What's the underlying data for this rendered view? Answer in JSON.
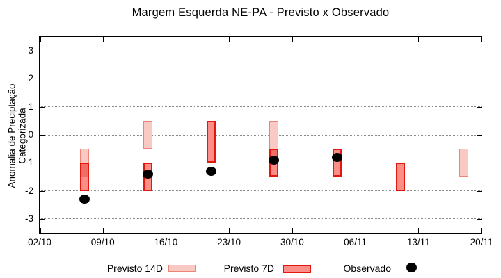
{
  "title": "Margem Esquerda NE-PA - Previsto x Observado",
  "colors": {
    "background": "#ffffff",
    "axis": "#000000",
    "grid": "#8a8a8a",
    "p14_fill": "#f9c9c4",
    "p14_border": "#ee8478",
    "p7_fill": "#fb8e86",
    "p7_border": "#e3170d",
    "overlap_fill": "#ef6f66",
    "observed": "#000000"
  },
  "legend": {
    "items": [
      {
        "label": "Previsto 14D",
        "swatch": "box-light-pink"
      },
      {
        "label": "Previsto 7D",
        "swatch": "box-red"
      },
      {
        "label": "Observado",
        "swatch": "black-dot"
      }
    ]
  },
  "chart_data": {
    "type": "bar",
    "subtype": "floating-range-boxes-with-scatter-overlay",
    "title": "Margem Esquerda NE-PA - Previsto x Observado",
    "xlabel": "",
    "ylabel": "Anomalia de Preciptação Categorizada",
    "ylim": [
      -3.5,
      3.5
    ],
    "xlim_days": [
      0,
      49
    ],
    "grid": "horizontal-dotted-at-integer-y",
    "legend_position": "bottom-outside",
    "y_ticks": [
      3,
      2,
      1,
      0,
      -1,
      -2,
      -3
    ],
    "x_ticks": [
      {
        "label": "02/10",
        "day": 0
      },
      {
        "label": "09/10",
        "day": 7
      },
      {
        "label": "16/10",
        "day": 14
      },
      {
        "label": "23/10",
        "day": 21
      },
      {
        "label": "30/10",
        "day": 28
      },
      {
        "label": "06/11",
        "day": 35
      },
      {
        "label": "13/11",
        "day": 42
      },
      {
        "label": "20/11",
        "day": 49
      }
    ],
    "series": [
      {
        "name": "Previsto 14D",
        "type": "range-bar",
        "fill": "#f9c9c4",
        "border": "#ee8478",
        "data": [
          {
            "date": "07/10",
            "day": 5,
            "low": -1.5,
            "high": -0.5
          },
          {
            "date": "14/10",
            "day": 12,
            "low": -0.5,
            "high": 0.5
          },
          {
            "date": "28/10",
            "day": 26,
            "low": -1.0,
            "high": 0.5
          },
          {
            "date": "18/11",
            "day": 47,
            "low": -1.5,
            "high": -0.5
          }
        ]
      },
      {
        "name": "Previsto 7D",
        "type": "range-bar",
        "fill": "#fb8e86",
        "border": "#e3170d",
        "data": [
          {
            "date": "07/10",
            "day": 5,
            "low": -2.0,
            "high": -1.0
          },
          {
            "date": "14/10",
            "day": 12,
            "low": -2.0,
            "high": -1.0
          },
          {
            "date": "21/10",
            "day": 19,
            "low": -1.0,
            "high": 0.5
          },
          {
            "date": "28/10",
            "day": 26,
            "low": -1.5,
            "high": -0.5
          },
          {
            "date": "04/11",
            "day": 33,
            "low": -1.5,
            "high": -0.5
          },
          {
            "date": "11/11",
            "day": 40,
            "low": -2.0,
            "high": -1.0
          }
        ]
      },
      {
        "name": "Observado",
        "type": "scatter",
        "color": "#000000",
        "data": [
          {
            "date": "07/10",
            "day": 5,
            "value": -2.3
          },
          {
            "date": "14/10",
            "day": 12,
            "value": -1.4
          },
          {
            "date": "21/10",
            "day": 19,
            "value": -1.3
          },
          {
            "date": "28/10",
            "day": 26,
            "value": -0.9
          },
          {
            "date": "04/11",
            "day": 33,
            "value": -0.8
          }
        ]
      }
    ],
    "overlap_fill": "#ef6f66"
  }
}
